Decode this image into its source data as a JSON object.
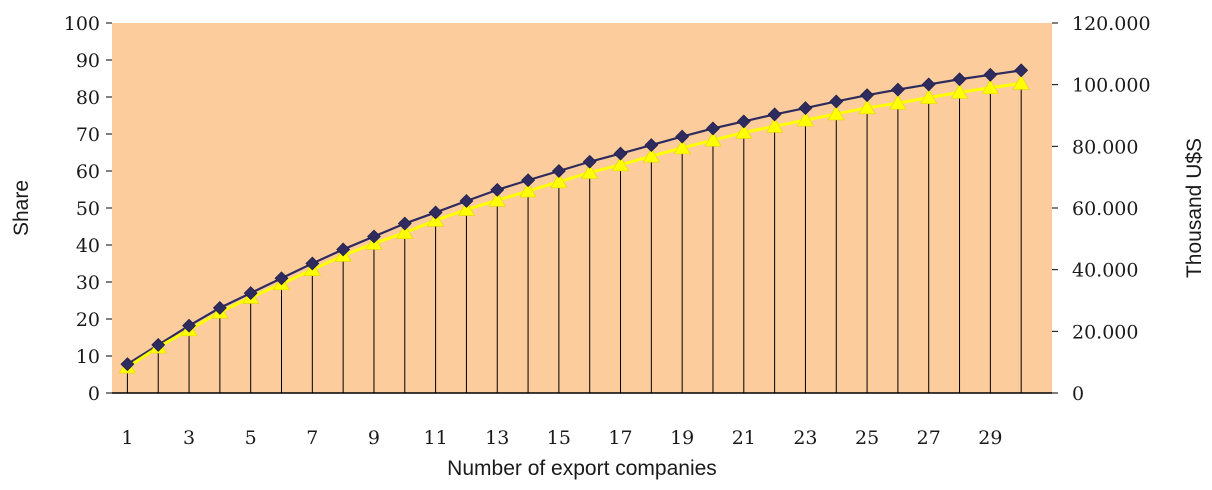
{
  "chart_data": {
    "type": "line",
    "xlabel": "Number of export companies",
    "ylabel": "Share",
    "y2label": "Thousand U$S",
    "x": [
      1,
      2,
      3,
      4,
      5,
      6,
      7,
      8,
      9,
      10,
      11,
      12,
      13,
      14,
      15,
      16,
      17,
      18,
      19,
      20,
      21,
      22,
      23,
      24,
      25,
      26,
      27,
      28,
      29,
      30
    ],
    "x_tick_labels": [
      "1",
      "3",
      "5",
      "7",
      "9",
      "11",
      "13",
      "15",
      "17",
      "19",
      "21",
      "23",
      "25",
      "27",
      "29"
    ],
    "ylim": [
      0,
      100
    ],
    "y_tick_labels": [
      "0",
      "10",
      "20",
      "30",
      "40",
      "50",
      "60",
      "70",
      "80",
      "90",
      "100"
    ],
    "y2lim": [
      0,
      120000
    ],
    "y2_tick_labels": [
      "0",
      "20.000",
      "40.000",
      "60.000",
      "80.000",
      "100.000",
      "120.000"
    ],
    "series": [
      {
        "axis": "left",
        "marker": "diamond",
        "color": "#2e2b5e",
        "values": [
          7.8,
          13,
          18.2,
          23,
          27,
          31,
          35,
          38.8,
          42.3,
          45.8,
          48.8,
          51.9,
          54.9,
          57.5,
          60,
          62.5,
          64.7,
          67,
          69.3,
          71.5,
          73.4,
          75.3,
          77,
          78.8,
          80.5,
          82,
          83.4,
          84.8,
          86,
          87.2
        ]
      },
      {
        "axis": "right",
        "marker": "triangle",
        "color": "#ffff00",
        "values": [
          8400,
          14900,
          20500,
          26200,
          31000,
          35400,
          40000,
          44600,
          48500,
          52000,
          56000,
          59500,
          62500,
          65500,
          68500,
          71500,
          74000,
          76800,
          79500,
          82000,
          84500,
          86500,
          88500,
          90500,
          92500,
          94000,
          95800,
          97500,
          99000,
          100400
        ]
      }
    ],
    "drop_lines": true,
    "grid": false,
    "legend": "none",
    "plot_background": "#fccc9c"
  }
}
